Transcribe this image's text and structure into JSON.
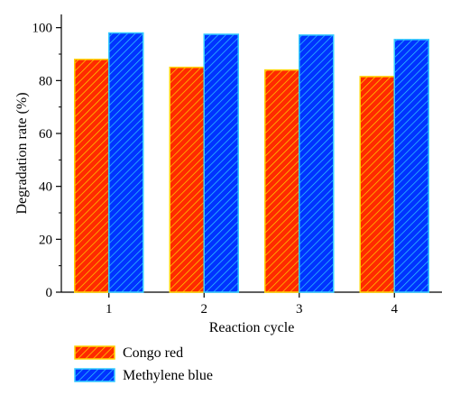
{
  "chart_data": {
    "type": "bar",
    "categories": [
      "1",
      "2",
      "3",
      "4"
    ],
    "series": [
      {
        "name": "Congo red",
        "values": [
          88,
          85,
          84,
          81.5
        ],
        "fill": "#ff2a00",
        "stroke": "#ffd400"
      },
      {
        "name": "Methylene blue",
        "values": [
          98,
          97.5,
          97.2,
          95.5
        ],
        "fill": "#0033ff",
        "stroke": "#33ccff"
      }
    ],
    "xlabel": "Reaction cycle",
    "ylabel": "Degradation rate (%)",
    "ylim": [
      0,
      105
    ],
    "yticks": [
      0,
      20,
      40,
      60,
      80,
      100
    ],
    "legend_position": "bottom-left"
  }
}
